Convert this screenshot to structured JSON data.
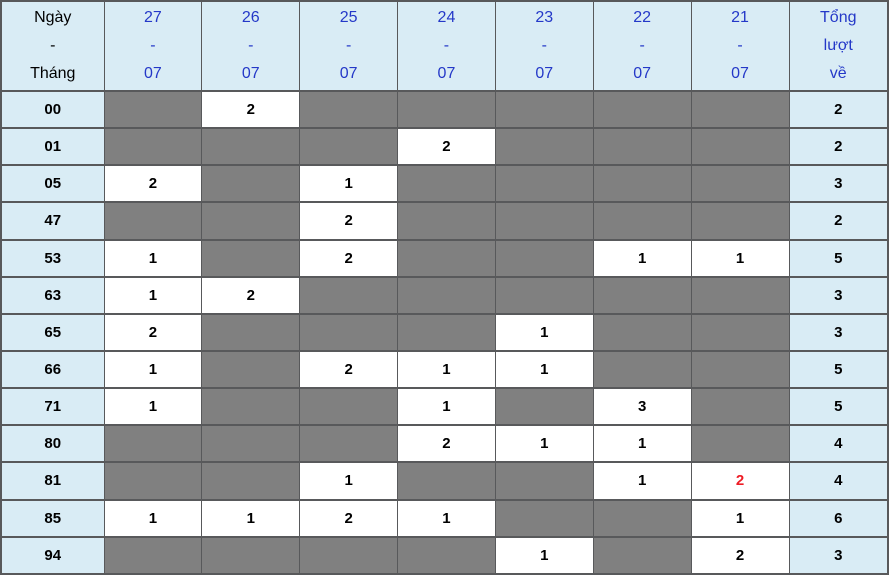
{
  "colors": {
    "header_bg": "#d9ecf5",
    "empty_cell_bg": "#808080",
    "filled_cell_bg": "#ffffff",
    "border_color": "#58595b",
    "date_text": "#2438c8",
    "label_text": "#000000",
    "highlight_text": "#ee1c25"
  },
  "chart_data": {
    "type": "table",
    "title": "",
    "columns": [
      {
        "key": "label",
        "type": "label",
        "lines": [
          "Ngày",
          "-",
          "Tháng"
        ]
      },
      {
        "key": "27-07",
        "type": "date",
        "lines": [
          "27",
          "-",
          "07"
        ]
      },
      {
        "key": "26-07",
        "type": "date",
        "lines": [
          "26",
          "-",
          "07"
        ]
      },
      {
        "key": "25-07",
        "type": "date",
        "lines": [
          "25",
          "-",
          "07"
        ]
      },
      {
        "key": "24-07",
        "type": "date",
        "lines": [
          "24",
          "-",
          "07"
        ]
      },
      {
        "key": "23-07",
        "type": "date",
        "lines": [
          "23",
          "-",
          "07"
        ]
      },
      {
        "key": "22-07",
        "type": "date",
        "lines": [
          "22",
          "-",
          "07"
        ]
      },
      {
        "key": "21-07",
        "type": "date",
        "lines": [
          "21",
          "-",
          "07"
        ]
      },
      {
        "key": "total",
        "type": "total",
        "lines": [
          "Tổng",
          "lượt",
          "về"
        ]
      }
    ],
    "rows": [
      {
        "label": "00",
        "cells": [
          null,
          "2",
          null,
          null,
          null,
          null,
          null
        ],
        "total": "2"
      },
      {
        "label": "01",
        "cells": [
          null,
          null,
          null,
          "2",
          null,
          null,
          null
        ],
        "total": "2"
      },
      {
        "label": "05",
        "cells": [
          "2",
          null,
          "1",
          null,
          null,
          null,
          null
        ],
        "total": "3"
      },
      {
        "label": "47",
        "cells": [
          null,
          null,
          "2",
          null,
          null,
          null,
          null
        ],
        "total": "2"
      },
      {
        "label": "53",
        "cells": [
          "1",
          null,
          "2",
          null,
          null,
          "1",
          "1"
        ],
        "total": "5"
      },
      {
        "label": "63",
        "cells": [
          "1",
          "2",
          null,
          null,
          null,
          null,
          null
        ],
        "total": "3"
      },
      {
        "label": "65",
        "cells": [
          "2",
          null,
          null,
          null,
          "1",
          null,
          null
        ],
        "total": "3"
      },
      {
        "label": "66",
        "cells": [
          "1",
          null,
          "2",
          "1",
          "1",
          null,
          null
        ],
        "total": "5"
      },
      {
        "label": "71",
        "cells": [
          "1",
          null,
          null,
          "1",
          null,
          "3",
          null
        ],
        "total": "5"
      },
      {
        "label": "80",
        "cells": [
          null,
          null,
          null,
          "2",
          "1",
          "1",
          null
        ],
        "total": "4"
      },
      {
        "label": "81",
        "cells": [
          null,
          null,
          "1",
          null,
          null,
          "1",
          {
            "value": "2",
            "highlight": true
          }
        ],
        "total": "4"
      },
      {
        "label": "85",
        "cells": [
          "1",
          "1",
          "2",
          "1",
          null,
          null,
          "1"
        ],
        "total": "6"
      },
      {
        "label": "94",
        "cells": [
          null,
          null,
          null,
          null,
          "1",
          null,
          "2"
        ],
        "total": "3"
      }
    ]
  }
}
